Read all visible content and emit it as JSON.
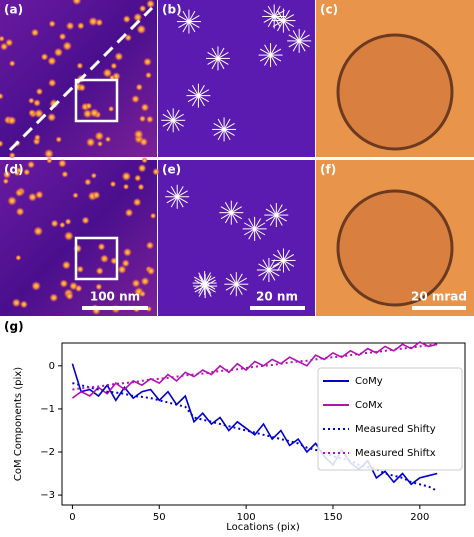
{
  "panels": [
    {
      "label": "(a)"
    },
    {
      "label": "(b)"
    },
    {
      "label": "(c)"
    },
    {
      "label": "(d)",
      "scale_bar": "100 nm"
    },
    {
      "label": "(e)",
      "scale_bar": "20 nm"
    },
    {
      "label": "(f)",
      "scale_bar": "20 mrad"
    }
  ],
  "chart_data": {
    "type": "line",
    "panel_label": "(g)",
    "x_label": "Locations (pix)",
    "y_label": "CoM Components (pix)",
    "x": [
      0,
      5,
      10,
      15,
      20,
      25,
      30,
      35,
      40,
      45,
      50,
      55,
      60,
      65,
      70,
      75,
      80,
      85,
      90,
      95,
      100,
      105,
      110,
      115,
      120,
      125,
      130,
      135,
      140,
      145,
      150,
      155,
      160,
      165,
      170,
      175,
      180,
      185,
      190,
      195,
      200,
      205,
      210
    ],
    "series": [
      {
        "name": "CoMy",
        "color": "#0000cc",
        "style": "solid",
        "values": [
          0.05,
          -0.6,
          -0.55,
          -0.7,
          -0.45,
          -0.8,
          -0.5,
          -0.75,
          -0.6,
          -0.55,
          -0.8,
          -0.6,
          -0.9,
          -0.7,
          -1.3,
          -1.1,
          -1.35,
          -1.2,
          -1.5,
          -1.3,
          -1.45,
          -1.6,
          -1.35,
          -1.7,
          -1.5,
          -1.85,
          -1.7,
          -2.0,
          -1.8,
          -2.1,
          -2.3,
          -1.95,
          -2.25,
          -2.4,
          -2.2,
          -2.6,
          -2.45,
          -2.7,
          -2.5,
          -2.75,
          -2.6,
          -2.55,
          -2.5
        ]
      },
      {
        "name": "CoMx",
        "color": "#b312b3",
        "style": "solid",
        "values": [
          -0.75,
          -0.6,
          -0.7,
          -0.5,
          -0.65,
          -0.4,
          -0.55,
          -0.35,
          -0.45,
          -0.3,
          -0.4,
          -0.2,
          -0.35,
          -0.15,
          -0.25,
          -0.1,
          -0.2,
          0.0,
          -0.15,
          0.05,
          -0.1,
          0.1,
          0.0,
          0.15,
          0.05,
          0.2,
          0.1,
          0.0,
          0.25,
          0.15,
          0.3,
          0.2,
          0.35,
          0.25,
          0.4,
          0.3,
          0.45,
          0.35,
          0.5,
          0.4,
          0.55,
          0.45,
          0.5
        ]
      },
      {
        "name": "Measured Shifty",
        "color": "#0000cc",
        "style": "dotted",
        "values": [
          -0.4,
          -0.45,
          -0.5,
          -0.55,
          -0.6,
          -0.62,
          -0.65,
          -0.7,
          -0.72,
          -0.75,
          -0.8,
          -0.85,
          -0.9,
          -0.95,
          -1.2,
          -1.25,
          -1.3,
          -1.35,
          -1.4,
          -1.45,
          -1.5,
          -1.55,
          -1.6,
          -1.65,
          -1.7,
          -1.75,
          -1.8,
          -1.9,
          -1.95,
          -2.0,
          -2.1,
          -2.15,
          -2.2,
          -2.3,
          -2.35,
          -2.4,
          -2.5,
          -2.55,
          -2.6,
          -2.7,
          -2.75,
          -2.8,
          -2.9
        ]
      },
      {
        "name": "Measured Shiftx",
        "color": "#b312b3",
        "style": "dotted",
        "values": [
          -0.55,
          -0.52,
          -0.5,
          -0.48,
          -0.45,
          -0.42,
          -0.4,
          -0.38,
          -0.35,
          -0.32,
          -0.3,
          -0.28,
          -0.25,
          -0.22,
          -0.2,
          -0.18,
          -0.15,
          -0.12,
          -0.1,
          -0.08,
          -0.05,
          -0.02,
          0.0,
          0.02,
          0.05,
          0.08,
          0.1,
          0.12,
          0.15,
          0.18,
          0.2,
          0.22,
          0.25,
          0.28,
          0.3,
          0.32,
          0.35,
          0.38,
          0.4,
          0.42,
          0.45,
          0.48,
          0.5
        ]
      }
    ],
    "xlim": [
      -6,
      226
    ],
    "xticks": [
      0,
      50,
      100,
      150,
      200
    ],
    "ylim": [
      -3.23,
      0.53
    ],
    "yticks": [
      {
        "value": -3,
        "label": "−3"
      },
      {
        "value": -2,
        "label": "−2"
      },
      {
        "value": -1,
        "label": "−1"
      },
      0
    ],
    "legend": "upper right"
  }
}
